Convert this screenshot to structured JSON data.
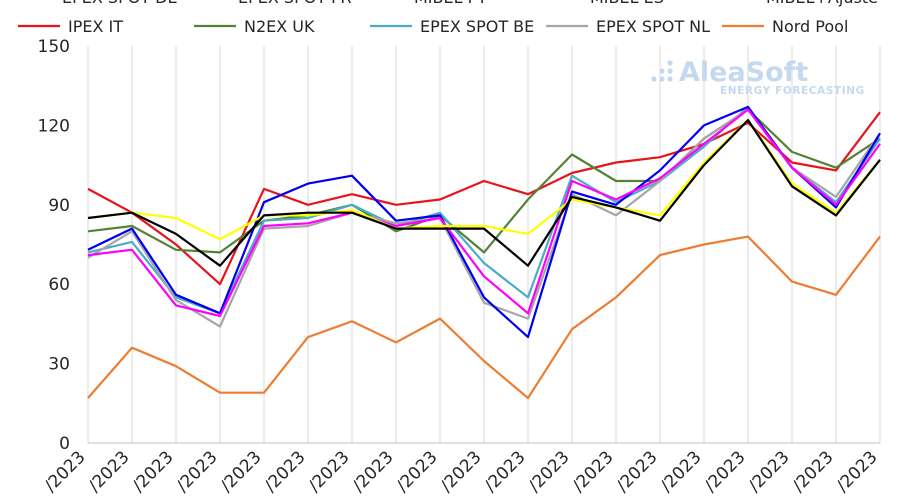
{
  "logo": {
    "name": "AleaSoft",
    "tagline": "ENERGY FORECASTING",
    "color": "#c5d9ee"
  },
  "legend_row1": [
    "EPEX SPOT DE",
    "EPEX SPOT FR",
    "MIBEL PT",
    "MIBEL ES",
    "MIBEL+Ajuste"
  ],
  "chart_data": {
    "type": "line",
    "title": "",
    "xlabel": "",
    "ylabel": "",
    "ylim": [
      0,
      150
    ],
    "yticks": [
      0,
      30,
      60,
      90,
      120,
      150
    ],
    "grid": {
      "vertical": true,
      "horizontal": false
    },
    "legend_position": "top",
    "x": [
      "/2023",
      "/2023",
      "/2023",
      "/2023",
      "/2023",
      "/2023",
      "/2023",
      "/2023",
      "/2023",
      "/2023",
      "/2023",
      "/2023",
      "/2023",
      "/2023",
      "/2023",
      "/2023",
      "/2023",
      "/2023",
      "/2023"
    ],
    "series": [
      {
        "name": "IPEX IT",
        "color": "#e8131b",
        "values": [
          96,
          87,
          75,
          60,
          96,
          90,
          94,
          90,
          92,
          99,
          94,
          102,
          106,
          108,
          113,
          121,
          106,
          103,
          125
        ]
      },
      {
        "name": "N2EX UK",
        "color": "#548235",
        "values": [
          80,
          82,
          73,
          72,
          84,
          86,
          90,
          80,
          86,
          72,
          92,
          109,
          99,
          99,
          115,
          126,
          110,
          104,
          115
        ]
      },
      {
        "name": "EPEX SPOT BE",
        "color": "#4bacc6",
        "values": [
          72,
          76,
          55,
          49,
          84,
          85,
          90,
          82,
          87,
          68,
          55,
          101,
          91,
          99,
          112,
          127,
          104,
          91,
          115
        ]
      },
      {
        "name": "EPEX SPOT NL",
        "color": "#a6a6a6",
        "values": [
          70,
          80,
          54,
          44,
          81,
          82,
          87,
          83,
          85,
          53,
          47,
          94,
          86,
          99,
          115,
          126,
          104,
          93,
          117
        ]
      },
      {
        "name": "Nord Pool",
        "color": "#ed7d31",
        "values": [
          17,
          36,
          29,
          19,
          19,
          40,
          46,
          38,
          47,
          31,
          17,
          43,
          55,
          71,
          75,
          78,
          61,
          56,
          78
        ]
      },
      {
        "name": "EPEX SPOT DE",
        "color": "#0000ee",
        "values": [
          73,
          81,
          56,
          49,
          91,
          98,
          101,
          84,
          86,
          55,
          40,
          95,
          90,
          103,
          120,
          127,
          104,
          89,
          117
        ]
      },
      {
        "name": "EPEX SPOT FR",
        "color": "#ff00ff",
        "values": [
          71,
          73,
          52,
          48,
          82,
          83,
          87,
          82,
          85,
          63,
          49,
          99,
          92,
          100,
          113,
          126,
          104,
          90,
          113
        ]
      },
      {
        "name": "MIBEL PT",
        "color": "#ffff00",
        "values": [
          85,
          87,
          85,
          77,
          86,
          86,
          88,
          81,
          82,
          82,
          79,
          92,
          89,
          86,
          106,
          122,
          98,
          87,
          107
        ]
      },
      {
        "name": "MIBEL ES",
        "color": "#000000",
        "values": [
          85,
          87,
          79,
          67,
          86,
          87,
          87,
          81,
          81,
          81,
          67,
          93,
          89,
          84,
          105,
          122,
          97,
          86,
          107
        ]
      }
    ]
  }
}
